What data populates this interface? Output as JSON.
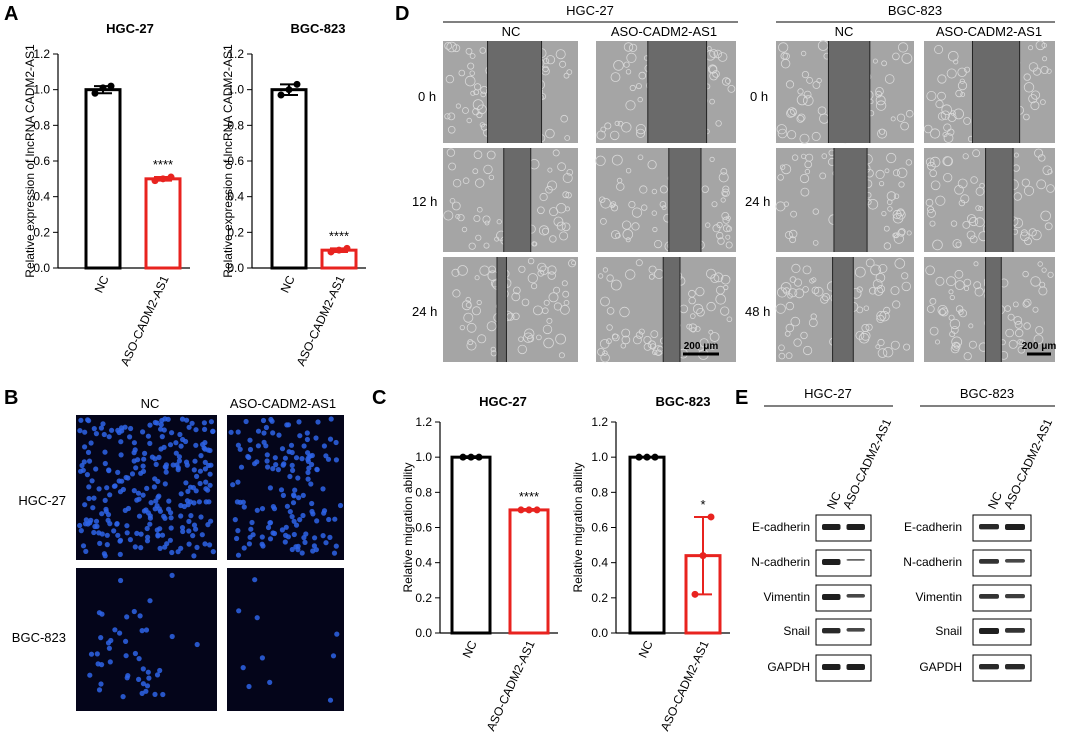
{
  "panels": {
    "A": "A",
    "B": "B",
    "C": "C",
    "D": "D",
    "E": "E"
  },
  "colors": {
    "nc": "#000000",
    "aso": "#e8231f",
    "dapi": "#2e64e8"
  },
  "chart_data": [
    {
      "type": "bar",
      "panel": "A",
      "title": "HGC-27",
      "ylabel": "Relative expression of lncRNA CADM2-AS1",
      "categories": [
        "NC",
        "ASO-CADM2-AS1"
      ],
      "values": [
        1.0,
        0.5
      ],
      "errors": [
        0.02,
        0.01
      ],
      "points": [
        [
          0.98,
          1.01,
          1.02
        ],
        [
          0.49,
          0.5,
          0.51
        ]
      ],
      "significance": [
        "",
        "****"
      ],
      "ylim": [
        0,
        1.2
      ],
      "yticks": [
        "0.0",
        "0.2",
        "0.4",
        "0.6",
        "0.8",
        "1.0",
        "1.2"
      ]
    },
    {
      "type": "bar",
      "panel": "A",
      "title": "BGC-823",
      "ylabel": "Relative expression of lncRNA CADM2-AS1",
      "categories": [
        "NC",
        "ASO-CADM2-AS1"
      ],
      "values": [
        1.0,
        0.1
      ],
      "errors": [
        0.03,
        0.01
      ],
      "points": [
        [
          0.97,
          1.0,
          1.03
        ],
        [
          0.09,
          0.1,
          0.11
        ]
      ],
      "significance": [
        "",
        "****"
      ],
      "ylim": [
        0,
        1.2
      ],
      "yticks": [
        "0.0",
        "0.2",
        "0.4",
        "0.6",
        "0.8",
        "1.0",
        "1.2"
      ]
    },
    {
      "type": "bar",
      "panel": "C",
      "title": "HGC-27",
      "ylabel": "Relative migration ability",
      "categories": [
        "NC",
        "ASO-CADM2-AS1"
      ],
      "values": [
        1.0,
        0.7
      ],
      "errors": [
        0.005,
        0.005
      ],
      "points": [
        [
          1.0,
          1.0,
          1.0
        ],
        [
          0.7,
          0.7,
          0.7
        ]
      ],
      "significance": [
        "",
        "****"
      ],
      "ylim": [
        0,
        1.2
      ],
      "yticks": [
        "0.0",
        "0.2",
        "0.4",
        "0.6",
        "0.8",
        "1.0",
        "1.2"
      ]
    },
    {
      "type": "bar",
      "panel": "C",
      "title": "BGC-823",
      "ylabel": "Relative migration ability",
      "categories": [
        "NC",
        "ASO-CADM2-AS1"
      ],
      "values": [
        1.0,
        0.44
      ],
      "errors": [
        0.0,
        0.22
      ],
      "points": [
        [
          1.0,
          1.0,
          1.0
        ],
        [
          0.22,
          0.44,
          0.66
        ]
      ],
      "significance": [
        "",
        "*"
      ],
      "ylim": [
        0,
        1.2
      ],
      "yticks": [
        "0.0",
        "0.2",
        "0.4",
        "0.6",
        "0.8",
        "1.0",
        "1.2"
      ]
    }
  ],
  "panel_b": {
    "columns": [
      "NC",
      "ASO-CADM2-AS1"
    ],
    "rows": [
      "HGC-27",
      "BGC-823"
    ]
  },
  "panel_d": {
    "groups": [
      {
        "title": "HGC-27",
        "columns": [
          "NC",
          "ASO-CADM2-AS1"
        ],
        "times": [
          "0 h",
          "12 h",
          "24 h"
        ]
      },
      {
        "title": "BGC-823",
        "columns": [
          "NC",
          "ASO-CADM2-AS1"
        ],
        "times": [
          "0 h",
          "24 h",
          "48 h"
        ]
      }
    ],
    "scale_bar": "200 μm"
  },
  "panel_e": {
    "groups": [
      {
        "title": "HGC-27",
        "lanes": [
          "NC",
          "ASO-CADM2-AS1"
        ]
      },
      {
        "title": "BGC-823",
        "lanes": [
          "NC",
          "ASO-CADM2-AS1"
        ]
      }
    ],
    "proteins": [
      "E-cadherin",
      "N-cadherin",
      "Vimentin",
      "Snail",
      "GAPDH"
    ]
  }
}
